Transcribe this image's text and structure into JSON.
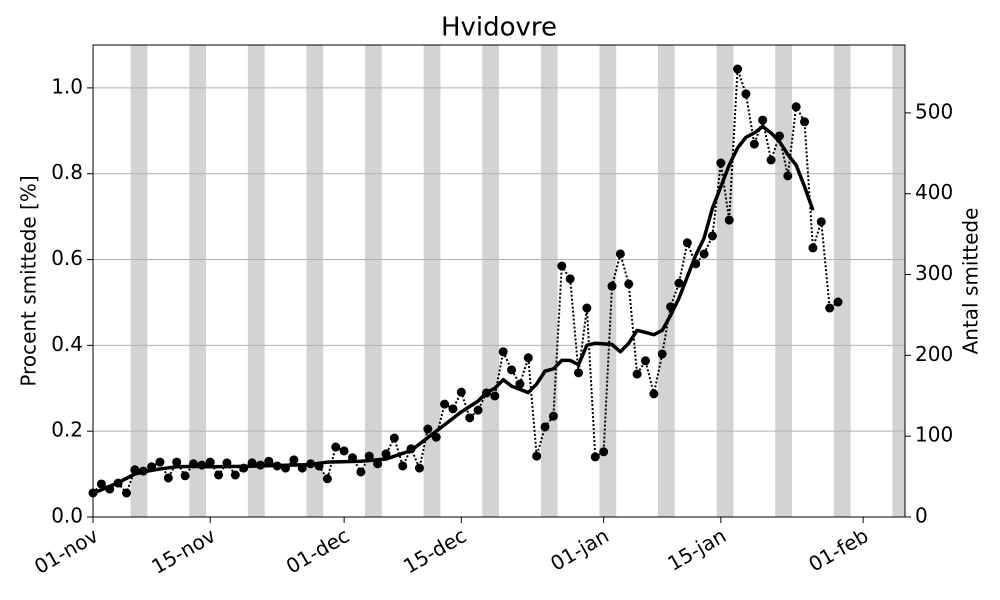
{
  "chart_data": {
    "type": "line",
    "title": "Hvidovre",
    "y_label": "Procent smittede [%]",
    "y2_label": "Antal smittede",
    "xlim": [
      0,
      97
    ],
    "xticks": [
      {
        "value": 0,
        "label": "01-nov"
      },
      {
        "value": 14,
        "label": "15-nov"
      },
      {
        "value": 30,
        "label": "01-dec"
      },
      {
        "value": 44,
        "label": "15-dec"
      },
      {
        "value": 61,
        "label": "01-jan"
      },
      {
        "value": 75,
        "label": "15-jan"
      },
      {
        "value": 92,
        "label": "01-feb"
      }
    ],
    "ylim": [
      0,
      1.1
    ],
    "yticks": [
      {
        "value": 0,
        "label": "0.0"
      },
      0.2,
      0.4,
      0.6,
      0.8,
      {
        "value": 1,
        "label": "1.0"
      }
    ],
    "y2lim": [
      0,
      584
    ],
    "y2ticks": [
      0,
      100,
      200,
      300,
      400,
      500
    ],
    "grid": true,
    "weekend_bands": [
      [
        4.5,
        6.5
      ],
      [
        11.5,
        13.5
      ],
      [
        18.5,
        20.5
      ],
      [
        25.5,
        27.5
      ],
      [
        32.5,
        34.5
      ],
      [
        39.5,
        41.5
      ],
      [
        46.5,
        48.5
      ],
      [
        53.5,
        55.5
      ],
      [
        60.5,
        62.5
      ],
      [
        67.5,
        69.5
      ],
      [
        74.5,
        76.5
      ],
      [
        81.5,
        83.5
      ],
      [
        88.5,
        90.5
      ],
      [
        95.5,
        97
      ]
    ],
    "band_color": "#d3d3d3",
    "series": [
      {
        "style": "dotted-markers",
        "color": "#000000",
        "x": [
          0,
          1,
          2,
          3,
          4,
          5,
          6,
          7,
          8,
          9,
          10,
          11,
          12,
          13,
          14,
          15,
          16,
          17,
          18,
          19,
          20,
          21,
          22,
          23,
          24,
          25,
          26,
          27,
          28,
          29,
          30,
          31,
          32,
          33,
          34,
          35,
          36,
          37,
          38,
          39,
          40,
          41,
          42,
          43,
          44,
          45,
          46,
          47,
          48,
          49,
          50,
          51,
          52,
          53,
          54,
          55,
          56,
          57,
          58,
          59,
          60,
          61,
          62,
          63,
          64,
          65,
          66,
          67,
          68,
          69,
          70,
          71,
          72,
          73,
          74,
          75,
          76,
          77,
          78,
          79,
          80,
          81,
          82,
          83,
          84,
          85,
          86,
          87,
          88,
          89
        ],
        "values": [
          0.056,
          0.077,
          0.065,
          0.079,
          0.056,
          0.11,
          0.107,
          0.117,
          0.128,
          0.091,
          0.128,
          0.096,
          0.124,
          0.121,
          0.128,
          0.098,
          0.126,
          0.098,
          0.114,
          0.126,
          0.121,
          0.13,
          0.119,
          0.114,
          0.133,
          0.114,
          0.124,
          0.119,
          0.089,
          0.163,
          0.154,
          0.138,
          0.105,
          0.142,
          0.124,
          0.147,
          0.184,
          0.119,
          0.159,
          0.114,
          0.205,
          0.186,
          0.263,
          0.252,
          0.291,
          0.231,
          0.249,
          0.289,
          0.282,
          0.385,
          0.343,
          0.31,
          0.371,
          0.142,
          0.21,
          0.235,
          0.585,
          0.555,
          0.336,
          0.487,
          0.14,
          0.152,
          0.538,
          0.613,
          0.543,
          0.333,
          0.364,
          0.287,
          0.38,
          0.49,
          0.545,
          0.639,
          0.59,
          0.613,
          0.655,
          0.825,
          0.692,
          1.044,
          0.986,
          0.869,
          0.925,
          0.832,
          0.888,
          0.795,
          0.956,
          0.921,
          0.627,
          0.688,
          0.487,
          0.501
        ]
      },
      {
        "style": "solid",
        "color": "#000000",
        "x": [
          0,
          3,
          5,
          6,
          8,
          10,
          12,
          14,
          18,
          22,
          26,
          28,
          32,
          35,
          38,
          40,
          42,
          44,
          46,
          47,
          48,
          49,
          50,
          52,
          53,
          54,
          55,
          56,
          57,
          58,
          59,
          60,
          62,
          63,
          64,
          65,
          66,
          67,
          68,
          69,
          70,
          71,
          72,
          73,
          74,
          75,
          76,
          77,
          78,
          79,
          80,
          81,
          82,
          83,
          84,
          85,
          86
        ],
        "values": [
          0.055,
          0.08,
          0.1,
          0.105,
          0.112,
          0.117,
          0.118,
          0.117,
          0.118,
          0.12,
          0.122,
          0.128,
          0.13,
          0.135,
          0.155,
          0.185,
          0.215,
          0.245,
          0.27,
          0.29,
          0.3,
          0.32,
          0.305,
          0.29,
          0.31,
          0.34,
          0.345,
          0.365,
          0.365,
          0.355,
          0.4,
          0.405,
          0.402,
          0.385,
          0.405,
          0.435,
          0.43,
          0.425,
          0.435,
          0.47,
          0.51,
          0.56,
          0.61,
          0.65,
          0.72,
          0.77,
          0.82,
          0.86,
          0.885,
          0.895,
          0.91,
          0.895,
          0.875,
          0.845,
          0.82,
          0.77,
          0.715
        ]
      }
    ]
  }
}
